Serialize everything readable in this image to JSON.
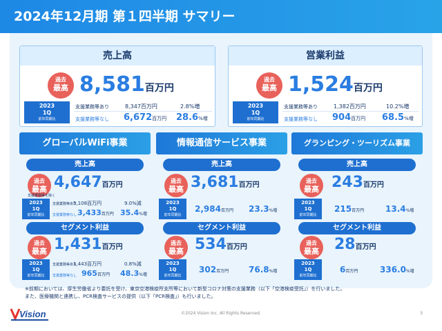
{
  "title": "2024年12月期 第１四半期 サマリー",
  "badge": {
    "line1": "過去",
    "line2": "最高"
  },
  "year": {
    "line1": "2023",
    "line2": "1Q",
    "line3": "前年同期比"
  },
  "row_labels": {
    "with": "支援業務等あり",
    "without": "支援業務等なし"
  },
  "sales": {
    "title": "売上高",
    "value": "8,581",
    "unit": "百万円",
    "with_value": "8,347百万円",
    "with_pct": "2.8%増",
    "without_value": "6,672",
    "without_unit": "百万円",
    "without_pct": "28.6",
    "without_pct_unit": "%増"
  },
  "op": {
    "title": "営業利益",
    "value": "1,524",
    "unit": "百万円",
    "with_value": "1,382百万円",
    "with_pct": "10.2%増",
    "without_value": "904",
    "without_unit": "百万円",
    "without_pct": "68.5",
    "without_pct_unit": "%増"
  },
  "segments": [
    {
      "title": "グローバルWiFi事業",
      "sales_pill": "売上高",
      "sales_value": "4,647",
      "sales_unit": "百万円",
      "sales_note": "支援業務等を除く",
      "sales_with_value": "5,108百万円",
      "sales_with_pct": "9.0%減",
      "sales_without_value": "3,433",
      "sales_without_unit": "百万円",
      "sales_without_pct": "35.4",
      "sales_without_pct_unit": "%増",
      "profit_pill": "セグメント利益",
      "profit_value": "1,431",
      "profit_unit": "百万円",
      "profit_with_value": "1,443百万円",
      "profit_with_pct": "0.8%減",
      "profit_without_value": "965",
      "profit_without_unit": "百万円",
      "profit_without_pct": "48.3",
      "profit_without_pct_unit": "%増"
    },
    {
      "title": "情報通信サービス事業",
      "sales_pill": "売上高",
      "sales_value": "3,681",
      "sales_unit": "百万円",
      "sales_yoy_value": "2,984",
      "sales_yoy_unit": "百万円",
      "sales_yoy_pct": "23.3",
      "sales_yoy_pct_unit": "%増",
      "profit_pill": "セグメント利益",
      "profit_value": "534",
      "profit_unit": "百万円",
      "profit_yoy_value": "302",
      "profit_yoy_unit": "百万円",
      "profit_yoy_pct": "76.8",
      "profit_yoy_pct_unit": "%増"
    },
    {
      "title": "グランピング・ツーリズム事業",
      "sales_pill": "売上高",
      "sales_value": "243",
      "sales_unit": "百万円",
      "sales_yoy_value": "215",
      "sales_yoy_unit": "百万円",
      "sales_yoy_pct": "13.4",
      "sales_yoy_pct_unit": "%増",
      "profit_pill": "セグメント利益",
      "profit_value": "28",
      "profit_unit": "百万円",
      "profit_yoy_value": "6",
      "profit_yoy_unit": "百万円",
      "profit_yoy_pct": "336.0",
      "profit_yoy_pct_unit": "%増"
    }
  ],
  "footnote1": "※前期においては、厚生労働省より委託を受け、東京空港検疫所支所等において新型コロナ対策の支援業務（以下「空港検疫受託」）を行いました。",
  "footnote2": "また、医療機関と連携し、PCR検査サービスの提供（以下「PCR検査」）も行いました。",
  "logo": {
    "text": "Vision"
  },
  "copyright": "©2024 Vision Inc. All Rights Reserved.",
  "page_number": "3"
}
